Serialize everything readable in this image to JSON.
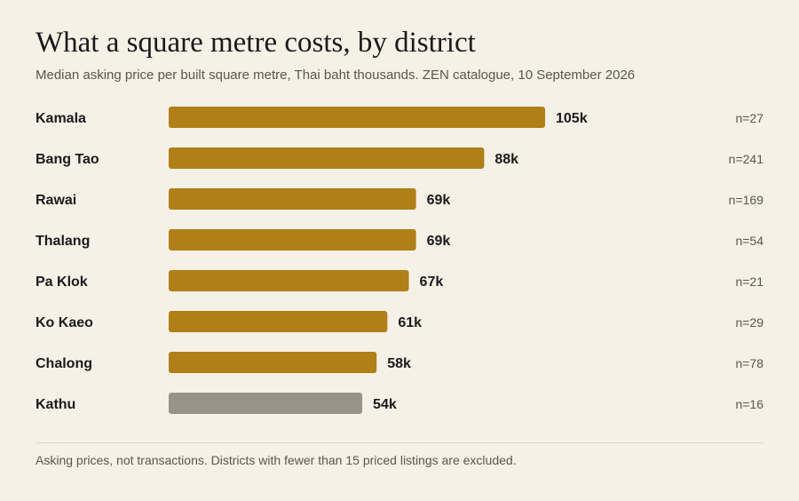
{
  "chart_data": {
    "type": "bar",
    "orientation": "horizontal",
    "title": "What a square metre costs, by district",
    "subtitle": "Median asking price per built square metre, Thai baht thousands. ZEN catalogue, 10 September 2026",
    "categories": [
      "Kamala",
      "Bang Tao",
      "Rawai",
      "Thalang",
      "Pa Klok",
      "Ko Kaeo",
      "Chalong",
      "Kathu"
    ],
    "values": [
      105,
      88,
      69,
      69,
      67,
      61,
      58,
      54
    ],
    "value_labels": [
      "105k",
      "88k",
      "69k",
      "69k",
      "67k",
      "61k",
      "58k",
      "54k"
    ],
    "counts": [
      "n=27",
      "n=241",
      "n=169",
      "n=54",
      "n=21",
      "n=29",
      "n=78",
      "n=16"
    ],
    "highlight": [
      true,
      true,
      true,
      true,
      true,
      true,
      true,
      false
    ],
    "colors": {
      "highlight": "#b07f17",
      "muted": "#979388"
    },
    "xlim": [
      0,
      105
    ],
    "grid": false,
    "legend": "none",
    "footnote": "Asking prices, not transactions. Districts with fewer than 15 priced listings are excluded."
  }
}
